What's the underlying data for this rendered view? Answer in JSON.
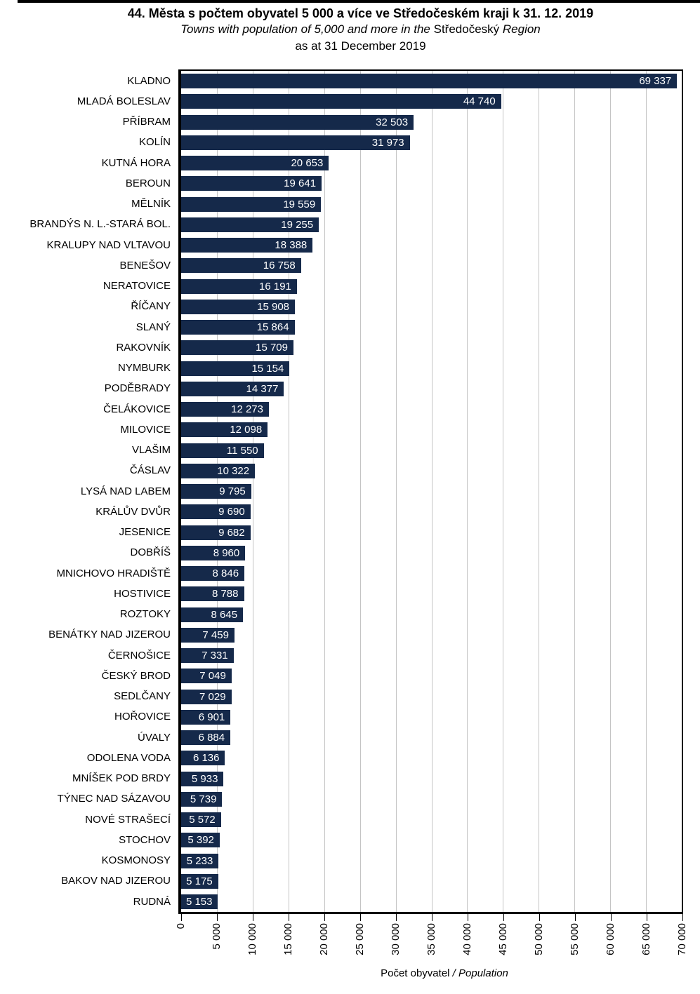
{
  "figure": {
    "title_cs": "44. Města s počtem obyvatel 5 000 a více ve Středočeském kraji k 31. 12. 2019",
    "subtitle_en": {
      "pre": "Towns with population of 5,000 and more in the ",
      "region": "Středočeský",
      "post": " Region"
    },
    "subtitle_en_line2": "as at 31 December 2019"
  },
  "chart_data": {
    "type": "bar",
    "orientation": "horizontal",
    "title": "44. Města s počtem obyvatel 5 000 a více ve Středočeském kraji k 31. 12. 2019",
    "subtitle": "Towns with population of 5,000 and more in the Středočeský Region as at 31 December 2019",
    "xlabel": "Počet obyvatel / Population",
    "xlabel_parts": {
      "normal": "Počet obyvatel",
      "italic": " / Population"
    },
    "ylabel": "",
    "xlim": [
      0,
      70000
    ],
    "x_tick_step": 5000,
    "x_tick_labels": [
      "0",
      "5 000",
      "10 000",
      "15 000",
      "20 000",
      "25 000",
      "30 000",
      "35 000",
      "40 000",
      "45 000",
      "50 000",
      "55 000",
      "60 000",
      "65 000",
      "70 000"
    ],
    "x_tick_label_rotation_deg": -90,
    "grid": "vertical gridlines every 5000",
    "legend": "none",
    "bar_color": "#15294A",
    "grid_color": "#C4C4C4",
    "value_label_color": "#FFFFFF",
    "categories": [
      "KLADNO",
      "MLADÁ BOLESLAV",
      "PŘÍBRAM",
      "KOLÍN",
      "KUTNÁ HORA",
      "BEROUN",
      "MĚLNÍK",
      "BRANDÝS N. L.-STARÁ BOL.",
      "KRALUPY NAD VLTAVOU",
      "BENEŠOV",
      "NERATOVICE",
      "ŘÍČANY",
      "SLANÝ",
      "RAKOVNÍK",
      "NYMBURK",
      "PODĚBRADY",
      "ČELÁKOVICE",
      "MILOVICE",
      "VLAŠIM",
      "ČÁSLAV",
      "LYSÁ NAD LABEM",
      "KRÁLŮV DVŮR",
      "JESENICE",
      "DOBŘÍŠ",
      "MNICHOVO HRADIŠTĚ",
      "HOSTIVICE",
      "ROZTOKY",
      "BENÁTKY NAD JIZEROU",
      "ČERNOŠICE",
      "ČESKÝ BROD",
      "SEDLČANY",
      "HOŘOVICE",
      "ÚVALY",
      "ODOLENA VODA",
      "MNÍŠEK POD BRDY",
      "TÝNEC NAD SÁZAVOU",
      "NOVÉ STRAŠECÍ",
      "STOCHOV",
      "KOSMONOSY",
      "BAKOV NAD JIZEROU",
      "RUDNÁ"
    ],
    "values": [
      69337,
      44740,
      32503,
      31973,
      20653,
      19641,
      19559,
      19255,
      18388,
      16758,
      16191,
      15908,
      15864,
      15709,
      15154,
      14377,
      12273,
      12098,
      11550,
      10322,
      9795,
      9690,
      9682,
      8960,
      8846,
      8788,
      8645,
      7459,
      7331,
      7049,
      7029,
      6901,
      6884,
      6136,
      5933,
      5739,
      5572,
      5392,
      5233,
      5175,
      5153
    ],
    "value_labels": [
      "69 337",
      "44 740",
      "32 503",
      "31 973",
      "20 653",
      "19 641",
      "19 559",
      "19 255",
      "18 388",
      "16 758",
      "16 191",
      "15 908",
      "15 864",
      "15 709",
      "15 154",
      "14 377",
      "12 273",
      "12 098",
      "11 550",
      "10 322",
      "9 795",
      "9 690",
      "9 682",
      "8 960",
      "8 846",
      "8 788",
      "8 645",
      "7 459",
      "7 331",
      "7 049",
      "7 029",
      "6 901",
      "6 884",
      "6 136",
      "5 933",
      "5 739",
      "5 572",
      "5 392",
      "5 233",
      "5 175",
      "5 153"
    ]
  }
}
